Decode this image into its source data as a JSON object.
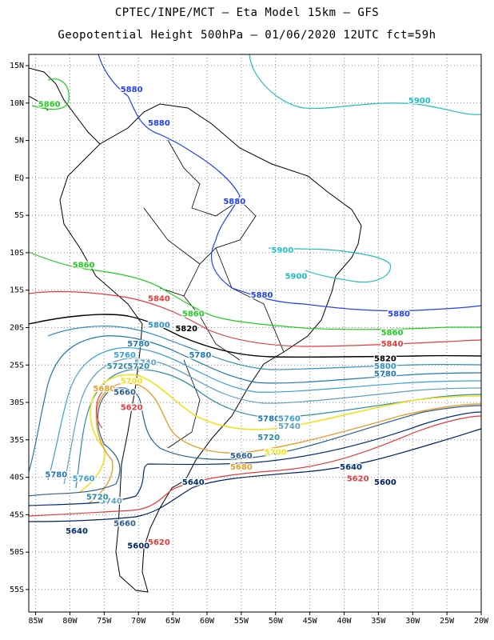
{
  "header": {
    "line1": "CPTEC/INPE/MCT –  Eta Model 15km – GFS",
    "line2": "Geopotential Height 500hPa – 01/06/2020 12UTC fct=59h"
  },
  "axes": {
    "lon_labels": [
      "85W",
      "80W",
      "75W",
      "70W",
      "65W",
      "60W",
      "55W",
      "50W",
      "45W",
      "40W",
      "35W",
      "30W",
      "25W",
      "20W"
    ],
    "lon_values": [
      -85,
      -80,
      -75,
      -70,
      -65,
      -60,
      -55,
      -50,
      -45,
      -40,
      -35,
      -30,
      -25,
      -20
    ],
    "lat_labels": [
      "15N",
      "10N",
      "5N",
      "EQ",
      "5S",
      "10S",
      "15S",
      "20S",
      "25S",
      "30S",
      "35S",
      "40S",
      "45S",
      "50S",
      "55S"
    ],
    "lat_values": [
      15,
      10,
      5,
      0,
      -5,
      -10,
      -15,
      -20,
      -25,
      -30,
      -35,
      -40,
      -45,
      -50,
      -55
    ],
    "lon_range": [
      -86,
      -20
    ],
    "lat_range": [
      -58,
      16.5
    ]
  },
  "contours": [
    {
      "level": "5900",
      "color": "#1fbfbf",
      "labels": [
        [
          -29,
          10
        ],
        [
          -49,
          -10
        ],
        [
          -47,
          -13.5
        ]
      ]
    },
    {
      "level": "5880",
      "color": "#1f3fff",
      "labels": [
        [
          -71,
          11.5
        ],
        [
          -67,
          7
        ],
        [
          -56,
          -3.5
        ],
        [
          -52,
          -16
        ],
        [
          -32,
          -18.5
        ]
      ]
    },
    {
      "level": "5860",
      "color": "#1fcf1f",
      "labels": [
        [
          -83,
          9.5
        ],
        [
          -78,
          -12
        ],
        [
          -62,
          -18.5
        ],
        [
          -33,
          -21
        ]
      ]
    },
    {
      "level": "5840",
      "color": "#e63b3b",
      "labels": [
        [
          -67,
          -16.5
        ],
        [
          -33,
          -22.5
        ]
      ]
    },
    {
      "level": "5820",
      "color": "#000000",
      "labels": [
        [
          -63,
          -20.5
        ],
        [
          -34,
          -24.5
        ]
      ]
    },
    {
      "level": "5800",
      "color": "#2f8fbf",
      "labels": [
        [
          -67,
          -20
        ],
        [
          -34,
          -25.5
        ]
      ]
    },
    {
      "level": "5780",
      "color": "#1f77b4",
      "labels": [
        [
          -70,
          -22.5
        ],
        [
          -61,
          -24
        ],
        [
          -34,
          -26.5
        ],
        [
          -51,
          -32.5
        ],
        [
          -82,
          -40
        ]
      ]
    },
    {
      "level": "5760",
      "color": "#3a9fd6",
      "labels": [
        [
          -72,
          -24
        ],
        [
          -48,
          -32.5
        ],
        [
          -78,
          -40.5
        ]
      ]
    },
    {
      "level": "5740",
      "color": "#5f9fbf",
      "labels": [
        [
          -69,
          -25
        ],
        [
          -48,
          -33.5
        ],
        [
          -74,
          -43.5
        ]
      ]
    },
    {
      "level": "5720",
      "color": "#2b8aa6",
      "labels": [
        [
          -73,
          -25.5
        ],
        [
          -70,
          -25.5
        ],
        [
          -51,
          -35
        ],
        [
          -76,
          -43
        ]
      ]
    },
    {
      "level": "5700",
      "color": "#f2e21a",
      "labels": [
        [
          -71,
          -27.5
        ],
        [
          -50,
          -37
        ]
      ]
    },
    {
      "level": "5680",
      "color": "#e69f2b",
      "labels": [
        [
          -75,
          -28.5
        ],
        [
          -55,
          -39
        ]
      ]
    },
    {
      "level": "5660",
      "color": "#2a5f8f",
      "labels": [
        [
          -72,
          -29
        ],
        [
          -55,
          -37.5
        ],
        [
          -72,
          -46.5
        ]
      ]
    },
    {
      "level": "5640",
      "color": "#002f6f",
      "labels": [
        [
          -62,
          -41
        ],
        [
          -39,
          -39
        ],
        [
          -79,
          -47.5
        ]
      ]
    },
    {
      "level": "5620",
      "color": "#e63b3b",
      "labels": [
        [
          -71,
          -31
        ],
        [
          -38,
          -40.5
        ],
        [
          -67,
          -49
        ]
      ]
    },
    {
      "level": "5600",
      "color": "#002060",
      "labels": [
        [
          -34,
          -41
        ],
        [
          -70,
          -49.5
        ]
      ]
    }
  ]
}
